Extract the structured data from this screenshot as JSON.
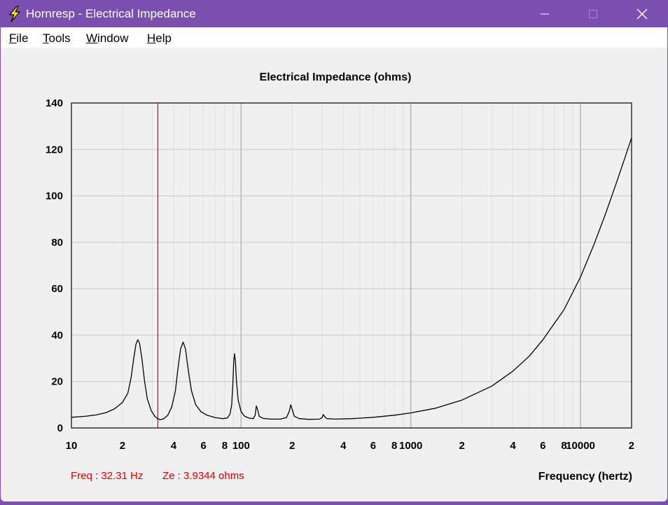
{
  "window": {
    "title": "Hornresp - Electrical Impedance",
    "icon": "lightning-bolt-icon",
    "controls": [
      "minimize-icon",
      "maximize-icon",
      "close-icon"
    ]
  },
  "menu": {
    "items": [
      {
        "id": "file",
        "first": "F",
        "rest": "ile"
      },
      {
        "id": "tools",
        "first": "T",
        "rest": "ools"
      },
      {
        "id": "window",
        "first": "W",
        "rest": "indow"
      },
      {
        "id": "help",
        "first": "H",
        "rest": "elp"
      }
    ]
  },
  "status": {
    "freq": "Freq : 32.31 Hz",
    "ze": "Ze : 3.9344 ohms"
  },
  "colors": {
    "titlebar": "#7a4fb0",
    "cursor": "#e00000",
    "curve": "#000000",
    "grid": "#c8c8c8"
  },
  "chart_data": {
    "type": "line",
    "title": "Electrical Impedance (ohms)",
    "xlabel": "Frequency (hertz)",
    "ylabel": "",
    "xscale": "log",
    "xlim": [
      10,
      20000
    ],
    "ylim": [
      0,
      140
    ],
    "grid": true,
    "yticks": [
      0,
      20,
      40,
      60,
      80,
      100,
      120,
      140
    ],
    "xtick_labels": [
      {
        "value": 10,
        "label": "10"
      },
      {
        "value": 20,
        "label": "2"
      },
      {
        "value": 40,
        "label": "4"
      },
      {
        "value": 60,
        "label": "6"
      },
      {
        "value": 80,
        "label": "8"
      },
      {
        "value": 100,
        "label": "100"
      },
      {
        "value": 200,
        "label": "2"
      },
      {
        "value": 400,
        "label": "4"
      },
      {
        "value": 600,
        "label": "6"
      },
      {
        "value": 800,
        "label": "8"
      },
      {
        "value": 1000,
        "label": "1000"
      },
      {
        "value": 2000,
        "label": "2"
      },
      {
        "value": 4000,
        "label": "4"
      },
      {
        "value": 6000,
        "label": "6"
      },
      {
        "value": 8000,
        "label": "8"
      },
      {
        "value": 10000,
        "label": "10000"
      },
      {
        "value": 20000,
        "label": "2"
      }
    ],
    "cursor_x": 32.31,
    "series": [
      {
        "points": [
          [
            10,
            4.6
          ],
          [
            12,
            5.0
          ],
          [
            14,
            5.6
          ],
          [
            16,
            6.6
          ],
          [
            18,
            8.3
          ],
          [
            20,
            11
          ],
          [
            21.5,
            15
          ],
          [
            22.5,
            22
          ],
          [
            23.3,
            30
          ],
          [
            24,
            36
          ],
          [
            24.6,
            38
          ],
          [
            25.2,
            36.5
          ],
          [
            26,
            30
          ],
          [
            27,
            20
          ],
          [
            28,
            12.5
          ],
          [
            29.5,
            7.5
          ],
          [
            31,
            5
          ],
          [
            32.31,
            3.93
          ],
          [
            33.5,
            3.6
          ],
          [
            35,
            4
          ],
          [
            37,
            5.5
          ],
          [
            39,
            9
          ],
          [
            41,
            16
          ],
          [
            42.5,
            26
          ],
          [
            44,
            34
          ],
          [
            45.5,
            37
          ],
          [
            47,
            34
          ],
          [
            49,
            24
          ],
          [
            51,
            16
          ],
          [
            54,
            10
          ],
          [
            58,
            7
          ],
          [
            63,
            5.5
          ],
          [
            70,
            4.5
          ],
          [
            78,
            4
          ],
          [
            83,
            4.3
          ],
          [
            86,
            6
          ],
          [
            88,
            10
          ],
          [
            89.5,
            20
          ],
          [
            90.5,
            29
          ],
          [
            91.5,
            32
          ],
          [
            92.5,
            29
          ],
          [
            94,
            20
          ],
          [
            96,
            12
          ],
          [
            100,
            7
          ],
          [
            105,
            5
          ],
          [
            112,
            4.2
          ],
          [
            118,
            4
          ],
          [
            121,
            5.5
          ],
          [
            123,
            9.5
          ],
          [
            125,
            8
          ],
          [
            128,
            5
          ],
          [
            135,
            4.1
          ],
          [
            150,
            3.8
          ],
          [
            170,
            3.8
          ],
          [
            185,
            4.5
          ],
          [
            192,
            7
          ],
          [
            196,
            10
          ],
          [
            200,
            8
          ],
          [
            206,
            5
          ],
          [
            220,
            4
          ],
          [
            250,
            3.7
          ],
          [
            290,
            3.8
          ],
          [
            300,
            4.5
          ],
          [
            305,
            5.8
          ],
          [
            310,
            5
          ],
          [
            320,
            4
          ],
          [
            360,
            3.8
          ],
          [
            450,
            4
          ],
          [
            600,
            4.6
          ],
          [
            800,
            5.5
          ],
          [
            1000,
            6.5
          ],
          [
            1400,
            8.5
          ],
          [
            2000,
            12
          ],
          [
            3000,
            18
          ],
          [
            4000,
            24.5
          ],
          [
            5000,
            31
          ],
          [
            6000,
            38
          ],
          [
            8000,
            51
          ],
          [
            10000,
            65
          ],
          [
            12000,
            79
          ],
          [
            14000,
            92
          ],
          [
            16000,
            104
          ],
          [
            18000,
            115
          ],
          [
            20000,
            125
          ]
        ]
      }
    ]
  }
}
